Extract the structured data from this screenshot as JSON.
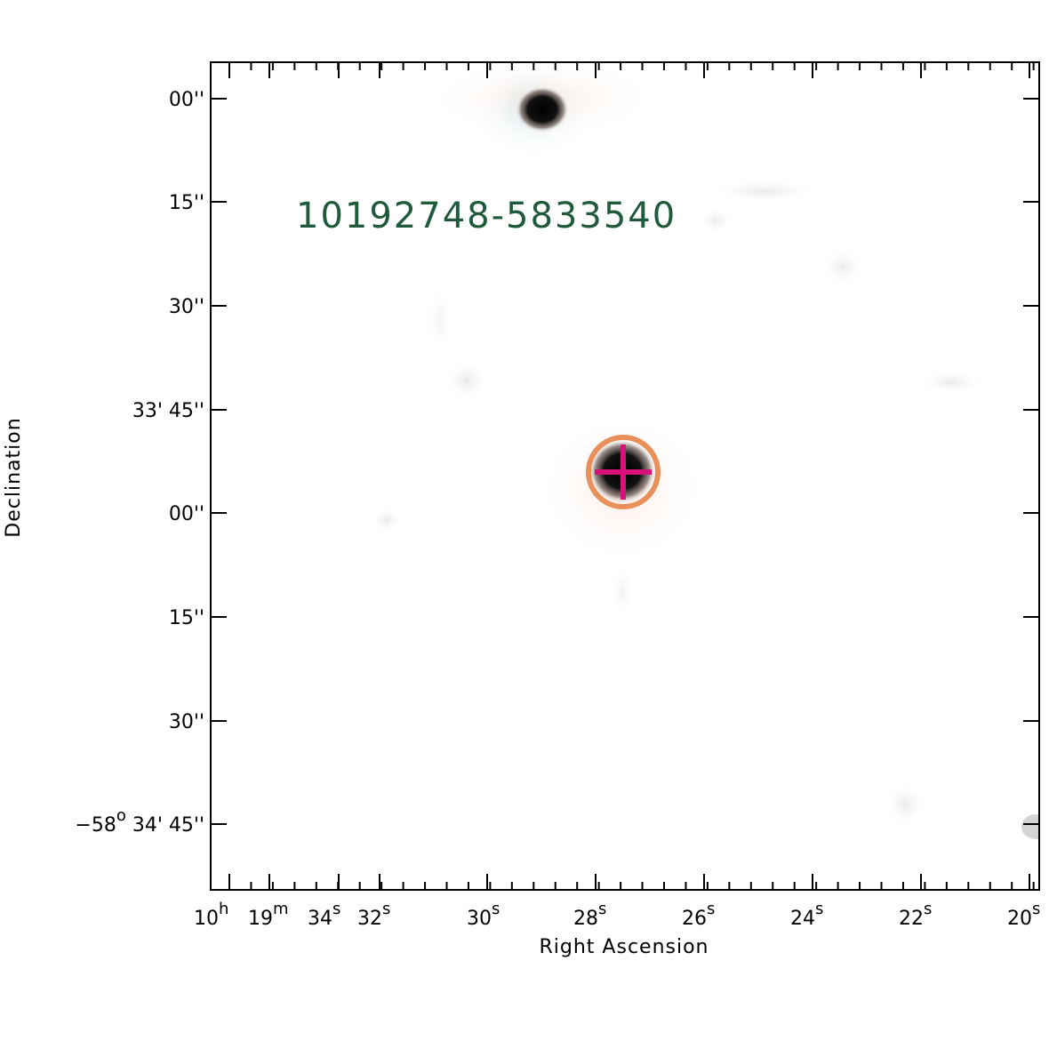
{
  "source_name": "10192748-5833540",
  "axes": {
    "x_title": "Right Ascension",
    "y_title": "Declination"
  },
  "x_ticks": [
    {
      "prefix": "10",
      "sup": "h"
    },
    {
      "prefix": "19",
      "sup": "m"
    },
    {
      "prefix": "34",
      "sup": "s"
    },
    {
      "prefix": "32",
      "sup": "s"
    },
    {
      "prefix": "30",
      "sup": "s"
    },
    {
      "prefix": "28",
      "sup": "s"
    },
    {
      "prefix": "26",
      "sup": "s"
    },
    {
      "prefix": "24",
      "sup": "s"
    },
    {
      "prefix": "22",
      "sup": "s"
    },
    {
      "prefix": "20",
      "sup": "s"
    }
  ],
  "y_ticks": [
    {
      "text": "00''"
    },
    {
      "text": "15''"
    },
    {
      "text": "30''"
    },
    {
      "text": "33' 45''"
    },
    {
      "text": "00''"
    },
    {
      "text": "15''"
    },
    {
      "text": "30''"
    },
    {
      "prefix": "−58",
      "sup": "o",
      "suffix": " 34' 45''"
    }
  ],
  "colors": {
    "label_green": "#1f5a3c",
    "circle_orange": "#e8905a",
    "cross_magenta": "#d8127a",
    "axis": "#000000"
  }
}
